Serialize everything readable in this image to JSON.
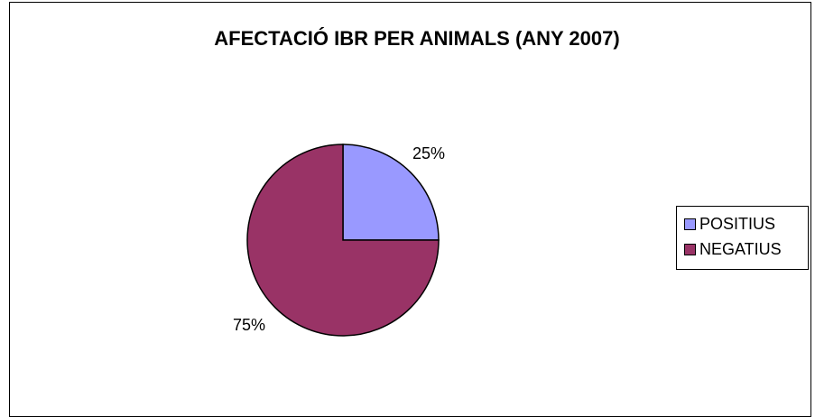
{
  "chart_data": {
    "type": "pie",
    "title": "AFECTACIÓ IBR PER ANIMALS (ANY 2007)",
    "categories": [
      "POSITIUS",
      "NEGATIUS"
    ],
    "values": [
      25,
      75
    ],
    "data_labels": [
      "25%",
      "75%"
    ],
    "colors": [
      "#9999ff",
      "#993366"
    ],
    "legend_position": "right"
  }
}
